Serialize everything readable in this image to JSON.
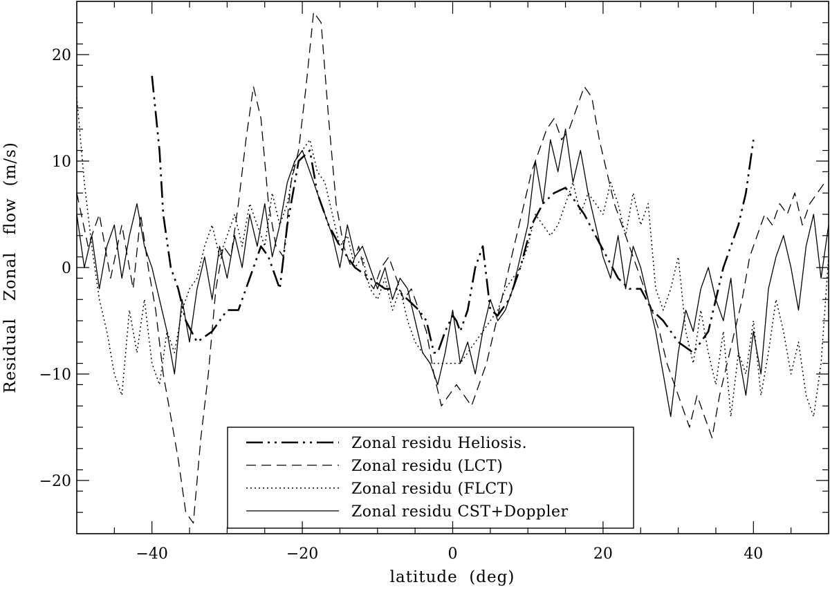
{
  "chart_data": {
    "type": "line",
    "xlabel": "latitude  (deg)",
    "ylabel": "Residual   Zonal   flow  (m/s)",
    "xlim": [
      -50,
      50
    ],
    "ylim": [
      -25,
      25
    ],
    "x_ticks": [
      -40,
      -20,
      0,
      20,
      40
    ],
    "y_ticks": [
      -20,
      -10,
      0,
      10,
      20
    ],
    "x_tick_labels": [
      "−40",
      "−20",
      "0",
      "20",
      "40"
    ],
    "y_tick_labels": [
      "−20",
      "−10",
      "0",
      "10",
      "20"
    ],
    "grid": false,
    "legend_position": "bottom-center",
    "series": [
      {
        "name": "Zonal residu Heliosis.",
        "style": "dashdotdot",
        "x": [
          -40,
          -39,
          -38.5,
          -37.5,
          -36.5,
          -35.5,
          -34,
          -32,
          -30,
          -28.5,
          -27,
          -25.5,
          -24.5,
          -23,
          -22,
          -20.5,
          -19,
          -18,
          -16.5,
          -15,
          -13,
          -11,
          -9,
          -7.5,
          -6,
          -4.5,
          -3.5,
          -2.5,
          -2,
          -1.5,
          -1,
          0,
          0.5,
          1,
          2,
          3,
          4,
          5,
          6,
          7.5,
          9,
          10.5,
          12,
          13.5,
          15,
          16.5,
          17.5,
          19,
          20.5,
          22,
          23.5,
          25,
          26.5,
          28,
          29,
          30,
          32,
          34,
          35,
          36,
          37,
          38,
          39,
          40
        ],
        "y": [
          18,
          11,
          5,
          0,
          -2,
          -5,
          -7,
          -6,
          -4,
          -4,
          -1,
          2,
          1,
          -2,
          4,
          10,
          11,
          7,
          4,
          2,
          0,
          -1,
          -2,
          -2,
          -3,
          -4,
          -5,
          -8,
          -8,
          -7,
          -6,
          -4.5,
          -5,
          -6,
          -4,
          0,
          2,
          -4,
          -4.5,
          -3,
          0,
          4,
          6,
          7,
          7.5,
          6,
          5,
          3,
          1,
          -1,
          -2,
          -2,
          -4,
          -5,
          -6,
          -7,
          -8,
          -6,
          -3,
          0,
          2,
          4,
          7,
          12
        ]
      },
      {
        "name": "Zonal residu (LCT)",
        "style": "dashed",
        "x": [
          -50,
          -48.5,
          -47,
          -45.5,
          -44,
          -42.5,
          -41.5,
          -40.5,
          -39.5,
          -38.5,
          -37.5,
          -36.5,
          -35.5,
          -34.5,
          -33.5,
          -32.5,
          -31.5,
          -30.5,
          -29.5,
          -28.5,
          -27.5,
          -26.5,
          -25.5,
          -24.5,
          -23.5,
          -22.5,
          -21.5,
          -20.5,
          -19.5,
          -18.5,
          -17.5,
          -16.5,
          -15.5,
          -14.5,
          -13.5,
          -12.5,
          -11.5,
          -10.5,
          -9.5,
          -8.5,
          -7.5,
          -6.5,
          -5.5,
          -4.5,
          -3.5,
          -2.5,
          -1.5,
          -0.5,
          0.5,
          1.5,
          2.5,
          3.5,
          4.5,
          5.5,
          6.5,
          7.5,
          8.5,
          9.5,
          10.5,
          11.5,
          12.5,
          13.5,
          14.5,
          15.5,
          16.5,
          17.5,
          18.5,
          19.5,
          20.5,
          21.5,
          22.5,
          23.5,
          24.5,
          25.5,
          26.5,
          27.5,
          28.5,
          29.5,
          30.5,
          31.5,
          32.5,
          33.5,
          34.5,
          35.5,
          36.5,
          37.5,
          38.5,
          39.5,
          40.5,
          41.5,
          42.5,
          43.5,
          44.5,
          45.5,
          46.5,
          47.5,
          48.5,
          49.5
        ],
        "y": [
          7,
          2,
          5,
          -1,
          4,
          -2,
          5,
          0,
          -4,
          -10,
          -14,
          -18,
          -23,
          -24,
          -16,
          -10,
          -2,
          2,
          1,
          6,
          12,
          17,
          14,
          6,
          2,
          1,
          8,
          11,
          17,
          24,
          23,
          14,
          6,
          2,
          0,
          2,
          -1,
          -2,
          0,
          1,
          -1,
          -3,
          -2,
          -4,
          -6,
          -10,
          -13,
          -12,
          -11,
          -12,
          -13,
          -11,
          -9,
          -6,
          -3,
          0,
          3,
          6,
          9,
          11,
          13,
          14,
          12,
          13,
          15,
          17,
          16,
          12,
          9,
          6,
          4,
          2,
          0,
          -2,
          -4,
          -6,
          -9,
          -11,
          -13,
          -15,
          -12,
          -14,
          -16,
          -12,
          -9,
          -6,
          -3,
          1,
          3,
          5,
          4,
          6,
          5,
          7,
          4,
          6,
          7,
          8
        ]
      },
      {
        "name": "Zonal residu (FLCT)",
        "style": "dotted",
        "x": [
          -50,
          -49,
          -48,
          -47,
          -46,
          -45,
          -44,
          -43,
          -42,
          -41,
          -40,
          -39,
          -38,
          -37,
          -36,
          -35,
          -34,
          -33,
          -32,
          -31,
          -30,
          -29,
          -28,
          -27,
          -26,
          -25,
          -24,
          -23,
          -22,
          -21,
          -20,
          -19,
          -18,
          -17,
          -16,
          -15,
          -14,
          -13,
          -12,
          -11,
          -10,
          -9,
          -8,
          -7,
          -6,
          -5,
          -4,
          -3,
          -2,
          -1,
          0,
          1,
          2,
          3,
          4,
          5,
          6,
          7,
          8,
          9,
          10,
          11,
          12,
          13,
          14,
          15,
          16,
          17,
          18,
          19,
          20,
          21,
          22,
          23,
          24,
          25,
          26,
          27,
          28,
          29,
          30,
          31,
          32,
          33,
          34,
          35,
          36,
          37,
          38,
          39,
          40,
          41,
          42,
          43,
          44,
          45,
          46,
          47,
          48,
          49,
          50
        ],
        "y": [
          16,
          8,
          2,
          -3,
          -6,
          -10,
          -12,
          -4,
          -8,
          -3,
          -9,
          -11,
          -6,
          -8,
          -4,
          -2,
          -1,
          2,
          4,
          1,
          3,
          5,
          2,
          6,
          4,
          2,
          7,
          4,
          6,
          10,
          11,
          12,
          9,
          8,
          5,
          2,
          3,
          0,
          1,
          -2,
          -3,
          -1,
          -4,
          -2,
          -5,
          -7,
          -8,
          -9,
          -9,
          -9,
          -9,
          -9,
          -8,
          -7,
          -6,
          -5,
          -4,
          -2,
          -1,
          0,
          2,
          5,
          4,
          3,
          4,
          6,
          8,
          5,
          7,
          6,
          5,
          8,
          6,
          3,
          7,
          4,
          6,
          -2,
          -4,
          -2,
          1,
          -6,
          -9,
          -4,
          -8,
          -11,
          -6,
          -14,
          -8,
          -10,
          -5,
          -12,
          -8,
          -3,
          -6,
          -10,
          -7,
          -12,
          -14,
          -9,
          1
        ]
      },
      {
        "name": "Zonal residu CST+Doppler",
        "style": "solid",
        "x": [
          -50,
          -49,
          -48,
          -47,
          -46,
          -45,
          -44,
          -43,
          -42,
          -41,
          -40,
          -39,
          -38,
          -37,
          -36,
          -35,
          -34,
          -33,
          -32,
          -31,
          -30,
          -29,
          -28,
          -27,
          -26,
          -25,
          -24,
          -23,
          -22,
          -21,
          -20,
          -19,
          -18,
          -17,
          -16,
          -15,
          -14,
          -13,
          -12,
          -11,
          -10,
          -9,
          -8,
          -7,
          -6,
          -5,
          -4,
          -3,
          -2,
          -1,
          0,
          1,
          2,
          3,
          4,
          5,
          6,
          7,
          8,
          9,
          10,
          11,
          12,
          13,
          14,
          15,
          16,
          17,
          18,
          19,
          20,
          21,
          22,
          23,
          24,
          25,
          26,
          27,
          28,
          29,
          30,
          31,
          32,
          33,
          34,
          35,
          36,
          37,
          38,
          39,
          40,
          41,
          42,
          43,
          44,
          45,
          46,
          47,
          48,
          49,
          50
        ],
        "y": [
          5,
          0,
          3,
          -2,
          2,
          4,
          -1,
          3,
          6,
          2,
          0,
          -3,
          -6,
          -10,
          -3,
          -7,
          -2,
          1,
          -3,
          2,
          -1,
          3,
          0,
          5,
          2,
          6,
          1,
          4,
          8,
          10,
          11,
          9,
          7,
          5,
          3,
          0,
          4,
          1,
          2,
          0,
          -2,
          0,
          -3,
          -1,
          -2,
          -5,
          -8,
          -9,
          -11,
          -8,
          -4,
          -9,
          -7,
          -10,
          -6,
          -3,
          -5,
          -4,
          -2,
          1,
          4,
          10,
          6,
          12,
          9,
          13,
          8,
          11,
          7,
          4,
          1,
          -1,
          3,
          -2,
          2,
          0,
          -3,
          -6,
          -10,
          -14,
          -8,
          -4,
          -6,
          -2,
          0,
          -3,
          -5,
          -1,
          -8,
          -12,
          -6,
          -10,
          -2,
          1,
          3,
          0,
          -4,
          2,
          5,
          -1,
          4
        ]
      }
    ]
  }
}
